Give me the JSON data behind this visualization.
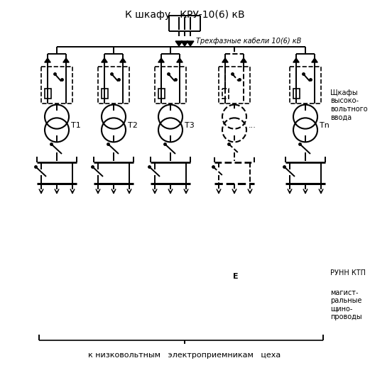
{
  "title_top": "К шкафу   КРУ-10(6) кВ",
  "label_cables": "Трехфазные кабели 10(6) кВ",
  "label_cabinets": "Щкафы\nвысоко-\nвольтного\nввода",
  "label_runн": "РУНН КТП",
  "label_mag": "магист-\nральные\nщино-\nпроводы",
  "label_bottom": "к низковольтным   электроприемникам   цеха",
  "label_E": "Е",
  "transformers": [
    "Т1",
    "Т2",
    "Т3",
    "...",
    "Тn"
  ],
  "bg_color": "#ffffff",
  "line_color": "#000000",
  "font_size_title": 10,
  "font_size_labels": 8,
  "font_size_small": 7,
  "fig_width": 5.21,
  "fig_height": 5.36,
  "dpi": 100
}
